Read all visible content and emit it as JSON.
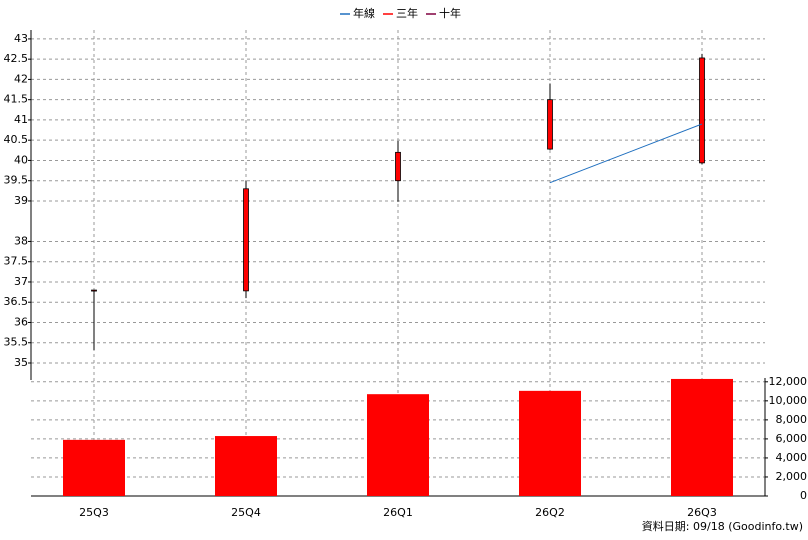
{
  "chart_data": {
    "type": "candlestick",
    "categories": [
      "25Q3",
      "25Q4",
      "26Q1",
      "26Q2",
      "26Q3"
    ],
    "ylim": [
      34.58,
      43.22
    ],
    "yticks": [
      35,
      35.5,
      36,
      36.5,
      37,
      37.5,
      38,
      39,
      39.5,
      40,
      40.5,
      41,
      41.5,
      42,
      42.5,
      43
    ],
    "grid": true,
    "candles": {
      "open": [
        36.79,
        36.78,
        39.5,
        40.28,
        39.94
      ],
      "high": [
        36.8,
        39.5,
        40.48,
        41.9,
        42.63
      ],
      "low": [
        35.32,
        36.6,
        38.98,
        40.26,
        39.91
      ],
      "close": [
        36.8,
        39.3,
        40.2,
        41.5,
        42.53
      ],
      "color": "#ff0000"
    },
    "series": [
      {
        "name": "年線",
        "color": "#1f6fbf",
        "values": [
          null,
          null,
          null,
          39.45,
          40.9
        ]
      },
      {
        "name": "三年",
        "color": "#ff0000",
        "values": [
          null,
          null,
          null,
          null,
          null
        ]
      },
      {
        "name": "十年",
        "color": "#800040",
        "values": [
          null,
          null,
          null,
          null,
          null
        ]
      }
    ],
    "volume": {
      "values": [
        5900,
        6300,
        10700,
        11050,
        12300
      ],
      "color": "#ff0000",
      "ylim": [
        0,
        12400
      ],
      "yticks": [
        0,
        {
          "value": 2000,
          "label": "2,000"
        },
        {
          "value": 4000,
          "label": "4,000"
        },
        {
          "value": 6000,
          "label": "6,000"
        },
        {
          "value": 8000,
          "label": "8,000"
        },
        {
          "value": 10000,
          "label": "10,000"
        },
        {
          "value": 12000,
          "label": "12,000"
        }
      ]
    },
    "source": "資料日期: 09/18  (Goodinfo.tw)"
  }
}
